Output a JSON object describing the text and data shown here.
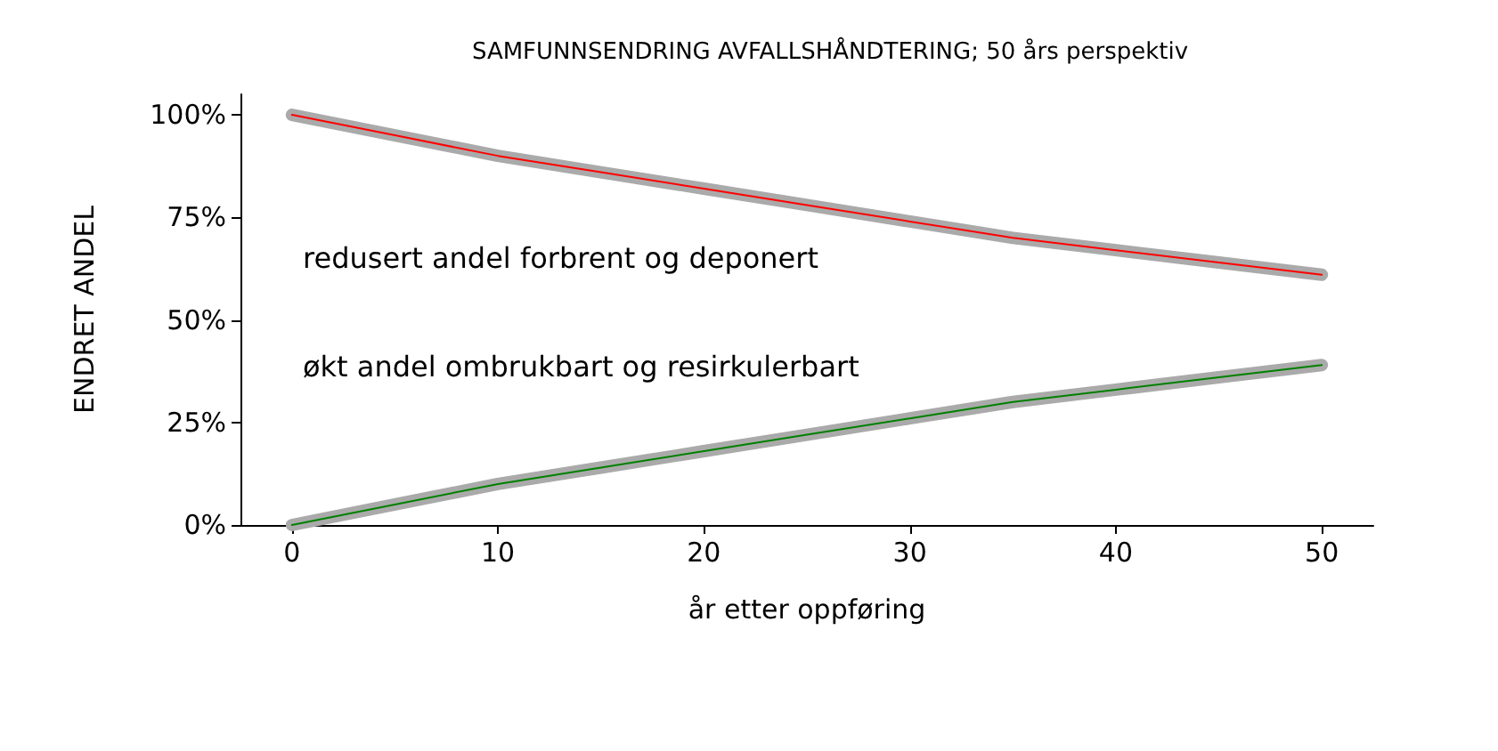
{
  "chart_data": {
    "type": "line",
    "title": "SAMFUNNSENDRING AVFALLSHÅNDTERING; 50 års perspektiv",
    "xlabel": "år etter oppføring",
    "ylabel": "ENDRET ANDEL",
    "x": [
      0,
      5,
      10,
      15,
      20,
      25,
      30,
      35,
      40,
      45,
      50
    ],
    "series": [
      {
        "color": "#aaaaaa",
        "values": [
          100,
          95,
          90,
          86,
          82,
          78,
          74,
          70,
          67,
          64,
          61
        ]
      },
      {
        "color": "#ff0000",
        "values": [
          100,
          95,
          90,
          86,
          82,
          78,
          74,
          70,
          67,
          64,
          61
        ]
      },
      {
        "color": "#aaaaaa",
        "values": [
          0,
          5,
          10,
          14,
          18,
          22,
          26,
          30,
          33,
          36,
          39
        ]
      },
      {
        "color": "#008000",
        "values": [
          0,
          5,
          10,
          14,
          18,
          22,
          26,
          30,
          33,
          36,
          39
        ]
      }
    ],
    "xlim": [
      -2.5,
      52.5
    ],
    "xticks": [
      0,
      10,
      20,
      30,
      40,
      50
    ],
    "ylim": [
      0,
      105
    ],
    "yticks": [
      {
        "value": 0,
        "label": "0%"
      },
      {
        "value": 25,
        "label": "25%"
      },
      {
        "value": 50,
        "label": "50%"
      },
      {
        "value": 75,
        "label": "75%"
      },
      {
        "value": 100,
        "label": "100%"
      }
    ],
    "annotations": [
      "redusert andel forbrent og deponert",
      "økt andel ombrukbart og resirkulerbart"
    ],
    "grid": false,
    "marker": "none",
    "line_style": "solid"
  }
}
